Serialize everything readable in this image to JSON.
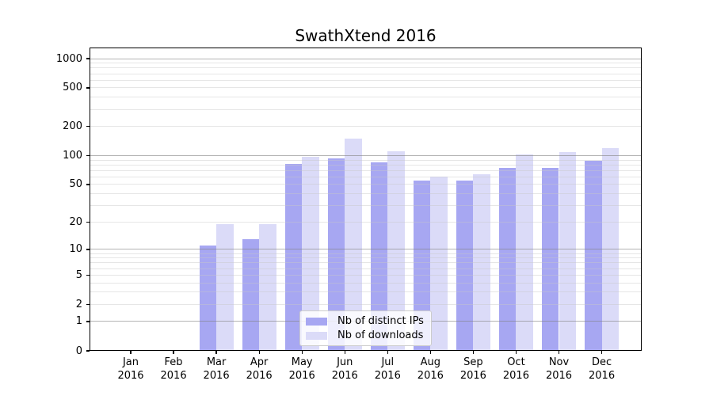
{
  "figure": {
    "title": "SwathXtend 2016",
    "background": "#ffffff"
  },
  "legend": {
    "items": [
      {
        "label": "Nb of distinct IPs",
        "color": "#a7a7f2"
      },
      {
        "label": "Nb of downloads",
        "color": "#dbdbf8"
      }
    ]
  },
  "chart_data": {
    "type": "bar",
    "title": "SwathXtend 2016",
    "categories": [
      "Jan 2016",
      "Feb 2016",
      "Mar 2016",
      "Apr 2016",
      "May 2016",
      "Jun 2016",
      "Jul 2016",
      "Aug 2016",
      "Sep 2016",
      "Oct 2016",
      "Nov 2016",
      "Dec 2016"
    ],
    "series": [
      {
        "name": "Nb of distinct IPs",
        "color": "#a7a7f2",
        "values": [
          0,
          0,
          11,
          13,
          82,
          94,
          85,
          55,
          55,
          75,
          75,
          88
        ]
      },
      {
        "name": "Nb of downloads",
        "color": "#dbdbf8",
        "values": [
          0,
          0,
          19,
          19,
          98,
          150,
          112,
          61,
          64,
          102,
          108,
          120
        ]
      }
    ],
    "yscale": "log10(value+1)",
    "ylim": [
      0,
      1300
    ],
    "yticks": [
      0,
      1,
      2,
      5,
      10,
      20,
      50,
      100,
      200,
      500,
      1000
    ],
    "grid": {
      "major_lines": [
        1,
        10,
        100,
        1000
      ],
      "minor_lines": [
        2,
        3,
        4,
        5,
        6,
        7,
        8,
        9,
        20,
        30,
        40,
        50,
        60,
        70,
        80,
        90,
        200,
        300,
        400,
        500,
        600,
        700,
        800,
        900
      ],
      "major_color": "rgba(128,128,128,0.60)",
      "minor_color": "rgba(200,200,200,0.45)"
    },
    "legend_position": "lower center",
    "xlabel": "",
    "ylabel": ""
  }
}
